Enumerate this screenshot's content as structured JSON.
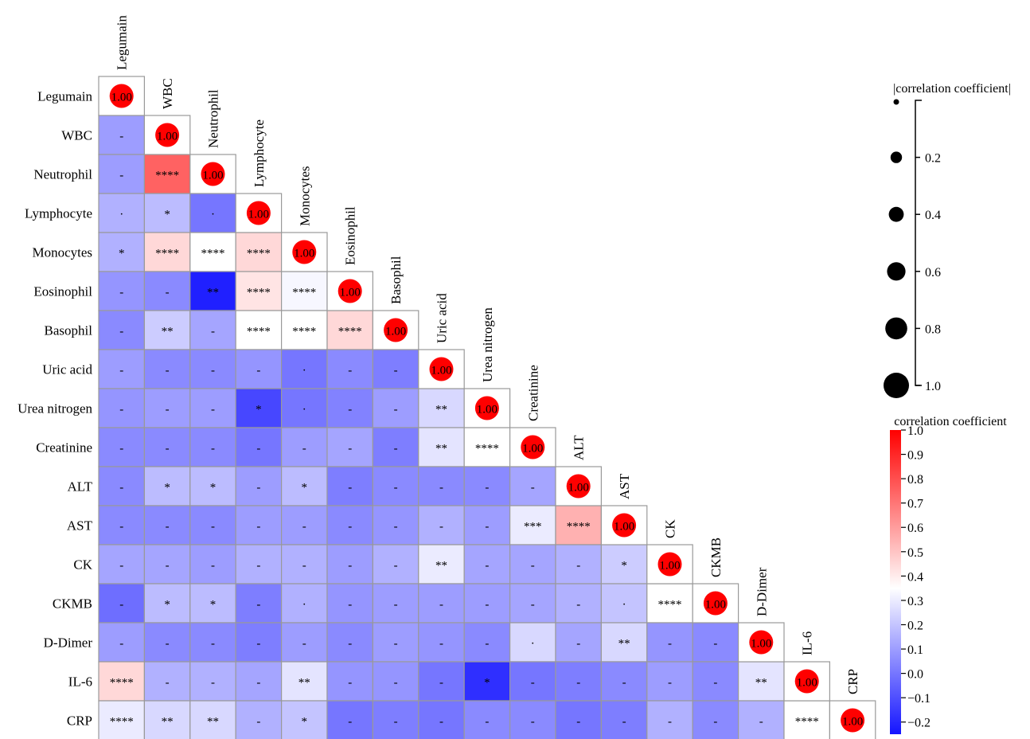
{
  "chart_data": {
    "type": "heatmap",
    "title": "",
    "variables": [
      "Legumain",
      "WBC",
      "Neutrophil",
      "Lymphocyte",
      "Monocytes",
      "Eosinophil",
      "Basophil",
      "Uric acid",
      "Urea nitrogen",
      "Creatinine",
      "ALT",
      "AST",
      "CK",
      "CKMB",
      "D-Dimer",
      "IL-6",
      "CRP"
    ],
    "diagonal_label": "1.00",
    "diagonal_value": 1.0,
    "cells": [
      {
        "row": 1,
        "col": 0,
        "r": 0.1,
        "sig": "-"
      },
      {
        "row": 2,
        "col": 0,
        "r": 0.1,
        "sig": "-"
      },
      {
        "row": 2,
        "col": 1,
        "r": 0.75,
        "sig": "****"
      },
      {
        "row": 3,
        "col": 0,
        "r": 0.15,
        "sig": "."
      },
      {
        "row": 3,
        "col": 1,
        "r": 0.18,
        "sig": "*"
      },
      {
        "row": 3,
        "col": 2,
        "r": 0.0,
        "sig": "."
      },
      {
        "row": 4,
        "col": 0,
        "r": 0.15,
        "sig": "*"
      },
      {
        "row": 4,
        "col": 1,
        "r": 0.45,
        "sig": "****"
      },
      {
        "row": 4,
        "col": 2,
        "r": 0.35,
        "sig": "****"
      },
      {
        "row": 4,
        "col": 3,
        "r": 0.45,
        "sig": "****"
      },
      {
        "row": 5,
        "col": 0,
        "r": 0.08,
        "sig": "-"
      },
      {
        "row": 5,
        "col": 1,
        "r": 0.05,
        "sig": "-"
      },
      {
        "row": 5,
        "col": 2,
        "r": -0.22,
        "sig": "**"
      },
      {
        "row": 5,
        "col": 3,
        "r": 0.42,
        "sig": "****"
      },
      {
        "row": 5,
        "col": 4,
        "r": 0.33,
        "sig": "****"
      },
      {
        "row": 6,
        "col": 0,
        "r": 0.05,
        "sig": "-"
      },
      {
        "row": 6,
        "col": 1,
        "r": 0.22,
        "sig": "**"
      },
      {
        "row": 6,
        "col": 2,
        "r": 0.12,
        "sig": "-"
      },
      {
        "row": 6,
        "col": 3,
        "r": 0.35,
        "sig": "****"
      },
      {
        "row": 6,
        "col": 4,
        "r": 0.35,
        "sig": "****"
      },
      {
        "row": 6,
        "col": 5,
        "r": 0.45,
        "sig": "****"
      },
      {
        "row": 7,
        "col": 0,
        "r": 0.1,
        "sig": "-"
      },
      {
        "row": 7,
        "col": 1,
        "r": 0.05,
        "sig": "-"
      },
      {
        "row": 7,
        "col": 2,
        "r": 0.05,
        "sig": "-"
      },
      {
        "row": 7,
        "col": 3,
        "r": 0.08,
        "sig": "-"
      },
      {
        "row": 7,
        "col": 4,
        "r": 0.0,
        "sig": "."
      },
      {
        "row": 7,
        "col": 5,
        "r": 0.05,
        "sig": "-"
      },
      {
        "row": 7,
        "col": 6,
        "r": 0.02,
        "sig": "-"
      },
      {
        "row": 8,
        "col": 0,
        "r": 0.08,
        "sig": "-"
      },
      {
        "row": 8,
        "col": 1,
        "r": 0.1,
        "sig": "-"
      },
      {
        "row": 8,
        "col": 2,
        "r": 0.1,
        "sig": "-"
      },
      {
        "row": 8,
        "col": 3,
        "r": -0.12,
        "sig": "*"
      },
      {
        "row": 8,
        "col": 4,
        "r": 0.0,
        "sig": "."
      },
      {
        "row": 8,
        "col": 5,
        "r": 0.03,
        "sig": "-"
      },
      {
        "row": 8,
        "col": 6,
        "r": 0.1,
        "sig": "-"
      },
      {
        "row": 8,
        "col": 7,
        "r": 0.25,
        "sig": "**"
      },
      {
        "row": 9,
        "col": 0,
        "r": 0.05,
        "sig": "-"
      },
      {
        "row": 9,
        "col": 1,
        "r": 0.05,
        "sig": "-"
      },
      {
        "row": 9,
        "col": 2,
        "r": 0.05,
        "sig": "-"
      },
      {
        "row": 9,
        "col": 3,
        "r": 0.0,
        "sig": "-"
      },
      {
        "row": 9,
        "col": 4,
        "r": 0.1,
        "sig": "-"
      },
      {
        "row": 9,
        "col": 5,
        "r": 0.12,
        "sig": "-"
      },
      {
        "row": 9,
        "col": 6,
        "r": 0.02,
        "sig": "-"
      },
      {
        "row": 9,
        "col": 7,
        "r": 0.28,
        "sig": "**"
      },
      {
        "row": 9,
        "col": 8,
        "r": 0.35,
        "sig": "****"
      },
      {
        "row": 10,
        "col": 0,
        "r": 0.05,
        "sig": "-"
      },
      {
        "row": 10,
        "col": 1,
        "r": 0.18,
        "sig": "*"
      },
      {
        "row": 10,
        "col": 2,
        "r": 0.18,
        "sig": "*"
      },
      {
        "row": 10,
        "col": 3,
        "r": 0.1,
        "sig": "-"
      },
      {
        "row": 10,
        "col": 4,
        "r": 0.18,
        "sig": "*"
      },
      {
        "row": 10,
        "col": 5,
        "r": 0.02,
        "sig": "-"
      },
      {
        "row": 10,
        "col": 6,
        "r": 0.05,
        "sig": "-"
      },
      {
        "row": 10,
        "col": 7,
        "r": 0.05,
        "sig": "-"
      },
      {
        "row": 10,
        "col": 8,
        "r": 0.05,
        "sig": "-"
      },
      {
        "row": 10,
        "col": 9,
        "r": 0.12,
        "sig": "-"
      },
      {
        "row": 11,
        "col": 0,
        "r": 0.05,
        "sig": "-"
      },
      {
        "row": 11,
        "col": 1,
        "r": 0.05,
        "sig": "-"
      },
      {
        "row": 11,
        "col": 2,
        "r": 0.05,
        "sig": "-"
      },
      {
        "row": 11,
        "col": 3,
        "r": 0.1,
        "sig": "-"
      },
      {
        "row": 11,
        "col": 4,
        "r": 0.1,
        "sig": "-"
      },
      {
        "row": 11,
        "col": 5,
        "r": 0.05,
        "sig": "-"
      },
      {
        "row": 11,
        "col": 6,
        "r": 0.08,
        "sig": "-"
      },
      {
        "row": 11,
        "col": 7,
        "r": 0.15,
        "sig": "-"
      },
      {
        "row": 11,
        "col": 8,
        "r": 0.1,
        "sig": "-"
      },
      {
        "row": 11,
        "col": 9,
        "r": 0.3,
        "sig": "***"
      },
      {
        "row": 11,
        "col": 10,
        "r": 0.55,
        "sig": "****"
      },
      {
        "row": 12,
        "col": 0,
        "r": 0.12,
        "sig": "-"
      },
      {
        "row": 12,
        "col": 1,
        "r": 0.12,
        "sig": "-"
      },
      {
        "row": 12,
        "col": 2,
        "r": 0.1,
        "sig": "-"
      },
      {
        "row": 12,
        "col": 3,
        "r": 0.15,
        "sig": "-"
      },
      {
        "row": 12,
        "col": 4,
        "r": 0.15,
        "sig": "-"
      },
      {
        "row": 12,
        "col": 5,
        "r": 0.1,
        "sig": "-"
      },
      {
        "row": 12,
        "col": 6,
        "r": 0.15,
        "sig": "-"
      },
      {
        "row": 12,
        "col": 7,
        "r": 0.3,
        "sig": "**"
      },
      {
        "row": 12,
        "col": 8,
        "r": 0.12,
        "sig": "-"
      },
      {
        "row": 12,
        "col": 9,
        "r": 0.12,
        "sig": "-"
      },
      {
        "row": 12,
        "col": 10,
        "r": 0.15,
        "sig": "-"
      },
      {
        "row": 12,
        "col": 11,
        "r": 0.22,
        "sig": "*"
      },
      {
        "row": 13,
        "col": 0,
        "r": -0.02,
        "sig": "-"
      },
      {
        "row": 13,
        "col": 1,
        "r": 0.18,
        "sig": "*"
      },
      {
        "row": 13,
        "col": 2,
        "r": 0.18,
        "sig": "*"
      },
      {
        "row": 13,
        "col": 3,
        "r": 0.02,
        "sig": "-"
      },
      {
        "row": 13,
        "col": 4,
        "r": 0.15,
        "sig": "."
      },
      {
        "row": 13,
        "col": 5,
        "r": 0.08,
        "sig": "-"
      },
      {
        "row": 13,
        "col": 6,
        "r": 0.1,
        "sig": "-"
      },
      {
        "row": 13,
        "col": 7,
        "r": 0.1,
        "sig": "-"
      },
      {
        "row": 13,
        "col": 8,
        "r": 0.1,
        "sig": "-"
      },
      {
        "row": 13,
        "col": 9,
        "r": 0.12,
        "sig": "-"
      },
      {
        "row": 13,
        "col": 10,
        "r": 0.15,
        "sig": "-"
      },
      {
        "row": 13,
        "col": 11,
        "r": 0.2,
        "sig": "."
      },
      {
        "row": 13,
        "col": 12,
        "r": 0.35,
        "sig": "****"
      },
      {
        "row": 14,
        "col": 0,
        "r": 0.1,
        "sig": "-"
      },
      {
        "row": 14,
        "col": 1,
        "r": 0.05,
        "sig": "-"
      },
      {
        "row": 14,
        "col": 2,
        "r": 0.05,
        "sig": "-"
      },
      {
        "row": 14,
        "col": 3,
        "r": 0.02,
        "sig": "-"
      },
      {
        "row": 14,
        "col": 4,
        "r": 0.1,
        "sig": "-"
      },
      {
        "row": 14,
        "col": 5,
        "r": 0.05,
        "sig": "-"
      },
      {
        "row": 14,
        "col": 6,
        "r": 0.1,
        "sig": "-"
      },
      {
        "row": 14,
        "col": 7,
        "r": 0.08,
        "sig": "-"
      },
      {
        "row": 14,
        "col": 8,
        "r": 0.05,
        "sig": "-"
      },
      {
        "row": 14,
        "col": 9,
        "r": 0.25,
        "sig": "."
      },
      {
        "row": 14,
        "col": 10,
        "r": 0.12,
        "sig": "-"
      },
      {
        "row": 14,
        "col": 11,
        "r": 0.25,
        "sig": "**"
      },
      {
        "row": 14,
        "col": 12,
        "r": 0.08,
        "sig": "-"
      },
      {
        "row": 14,
        "col": 13,
        "r": 0.05,
        "sig": "-"
      },
      {
        "row": 15,
        "col": 0,
        "r": 0.45,
        "sig": "****"
      },
      {
        "row": 15,
        "col": 1,
        "r": 0.15,
        "sig": "-"
      },
      {
        "row": 15,
        "col": 2,
        "r": 0.15,
        "sig": "-"
      },
      {
        "row": 15,
        "col": 3,
        "r": 0.12,
        "sig": "-"
      },
      {
        "row": 15,
        "col": 4,
        "r": 0.28,
        "sig": "**"
      },
      {
        "row": 15,
        "col": 5,
        "r": 0.08,
        "sig": "-"
      },
      {
        "row": 15,
        "col": 6,
        "r": 0.08,
        "sig": "-"
      },
      {
        "row": 15,
        "col": 7,
        "r": 0.0,
        "sig": "-"
      },
      {
        "row": 15,
        "col": 8,
        "r": -0.18,
        "sig": "*"
      },
      {
        "row": 15,
        "col": 9,
        "r": 0.0,
        "sig": "-"
      },
      {
        "row": 15,
        "col": 10,
        "r": 0.02,
        "sig": "-"
      },
      {
        "row": 15,
        "col": 11,
        "r": 0.05,
        "sig": "-"
      },
      {
        "row": 15,
        "col": 12,
        "r": 0.1,
        "sig": "-"
      },
      {
        "row": 15,
        "col": 13,
        "r": 0.05,
        "sig": "-"
      },
      {
        "row": 15,
        "col": 14,
        "r": 0.28,
        "sig": "**"
      },
      {
        "row": 16,
        "col": 0,
        "r": 0.3,
        "sig": "****"
      },
      {
        "row": 16,
        "col": 1,
        "r": 0.25,
        "sig": "**"
      },
      {
        "row": 16,
        "col": 2,
        "r": 0.25,
        "sig": "**"
      },
      {
        "row": 16,
        "col": 3,
        "r": 0.15,
        "sig": "-"
      },
      {
        "row": 16,
        "col": 4,
        "r": 0.2,
        "sig": "*"
      },
      {
        "row": 16,
        "col": 5,
        "r": 0.0,
        "sig": "-"
      },
      {
        "row": 16,
        "col": 6,
        "r": 0.02,
        "sig": "-"
      },
      {
        "row": 16,
        "col": 7,
        "r": 0.0,
        "sig": "-"
      },
      {
        "row": 16,
        "col": 8,
        "r": 0.05,
        "sig": "-"
      },
      {
        "row": 16,
        "col": 9,
        "r": 0.05,
        "sig": "-"
      },
      {
        "row": 16,
        "col": 10,
        "r": 0.0,
        "sig": "-"
      },
      {
        "row": 16,
        "col": 11,
        "r": 0.02,
        "sig": "-"
      },
      {
        "row": 16,
        "col": 12,
        "r": 0.15,
        "sig": "-"
      },
      {
        "row": 16,
        "col": 13,
        "r": 0.05,
        "sig": "-"
      },
      {
        "row": 16,
        "col": 14,
        "r": 0.15,
        "sig": "-"
      },
      {
        "row": 16,
        "col": 15,
        "r": 0.35,
        "sig": "****"
      }
    ],
    "size_legend": {
      "title": "|correlation coefficient|",
      "ticks": [
        0.2,
        0.4,
        0.6,
        0.8,
        1.0
      ],
      "tick_labels": [
        "0.2",
        "0.4",
        "0.6",
        "0.8",
        "1.0"
      ],
      "range": [
        0.0,
        1.0
      ]
    },
    "color_legend": {
      "title": "correlation coefficient",
      "range": [
        -0.25,
        1.0
      ],
      "ticks": [
        1.0,
        0.9,
        0.8,
        0.7,
        0.6,
        0.5,
        0.4,
        0.3,
        0.2,
        0.1,
        0.0,
        -0.1,
        -0.2
      ],
      "tick_labels": [
        "1.0",
        "0.9",
        "0.8",
        "0.7",
        "0.6",
        "0.5",
        "0.4",
        "0.3",
        "0.2",
        "0.1",
        "0.0",
        "−0.1",
        "−0.2"
      ],
      "colors": {
        "low": "#1414ff",
        "mid": "#ffffff",
        "high": "#ff0000"
      },
      "mid_value": 0.35
    },
    "dot_color": "#ff0000",
    "grid_color": "#999999"
  }
}
